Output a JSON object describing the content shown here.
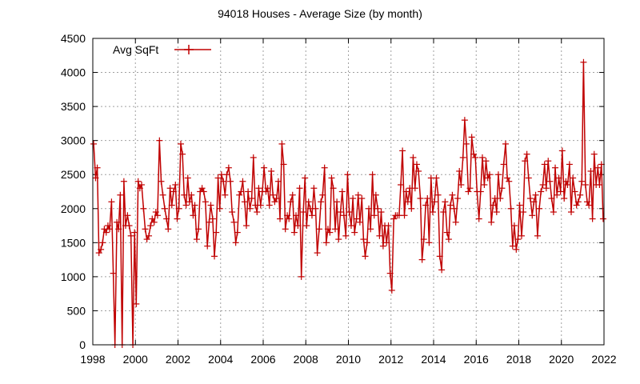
{
  "chart_data": {
    "type": "line",
    "title": "94018 Houses - Average Size (by month)",
    "xlabel": "",
    "ylabel": "",
    "xlim": [
      1998,
      2022
    ],
    "ylim": [
      0,
      4500
    ],
    "xticks": [
      "1998",
      "2000",
      "2002",
      "2004",
      "2006",
      "2008",
      "2010",
      "2012",
      "2014",
      "2016",
      "2018",
      "2020",
      "2022"
    ],
    "yticks": [
      "0",
      "500",
      "1000",
      "1500",
      "2000",
      "2500",
      "3000",
      "3500",
      "4000",
      "4500"
    ],
    "grid": true,
    "legend_position": "top-left",
    "colors": {
      "series": "#c00000",
      "axis": "#000000",
      "grid": "#a0a0a0"
    },
    "series": [
      {
        "name": "Avg SqFt",
        "marker": "plus",
        "x": [
          1998.04,
          1998.13,
          1998.21,
          1998.29,
          1998.38,
          1998.46,
          1998.54,
          1998.63,
          1998.71,
          1998.79,
          1998.88,
          1998.96,
          1999.04,
          1999.13,
          1999.21,
          1999.29,
          1999.38,
          1999.46,
          1999.54,
          1999.63,
          1999.71,
          1999.79,
          1999.88,
          1999.96,
          2000.04,
          2000.13,
          2000.21,
          2000.29,
          2000.38,
          2000.46,
          2000.54,
          2000.63,
          2000.71,
          2000.79,
          2000.88,
          2000.96,
          2001.04,
          2001.13,
          2001.21,
          2001.29,
          2001.38,
          2001.46,
          2001.54,
          2001.63,
          2001.71,
          2001.79,
          2001.88,
          2001.96,
          2002.04,
          2002.13,
          2002.21,
          2002.29,
          2002.38,
          2002.46,
          2002.54,
          2002.63,
          2002.71,
          2002.79,
          2002.88,
          2002.96,
          2003.04,
          2003.13,
          2003.21,
          2003.29,
          2003.38,
          2003.46,
          2003.54,
          2003.63,
          2003.71,
          2003.79,
          2003.88,
          2003.96,
          2004.04,
          2004.13,
          2004.21,
          2004.29,
          2004.38,
          2004.46,
          2004.54,
          2004.63,
          2004.71,
          2004.79,
          2004.88,
          2004.96,
          2005.04,
          2005.13,
          2005.21,
          2005.29,
          2005.38,
          2005.46,
          2005.54,
          2005.63,
          2005.71,
          2005.79,
          2005.88,
          2005.96,
          2006.04,
          2006.13,
          2006.21,
          2006.29,
          2006.38,
          2006.46,
          2006.54,
          2006.63,
          2006.71,
          2006.79,
          2006.88,
          2006.96,
          2007.04,
          2007.13,
          2007.21,
          2007.29,
          2007.38,
          2007.46,
          2007.54,
          2007.63,
          2007.71,
          2007.79,
          2007.88,
          2007.96,
          2008.04,
          2008.13,
          2008.21,
          2008.29,
          2008.38,
          2008.46,
          2008.54,
          2008.63,
          2008.71,
          2008.79,
          2008.88,
          2008.96,
          2009.04,
          2009.13,
          2009.21,
          2009.29,
          2009.38,
          2009.46,
          2009.54,
          2009.63,
          2009.71,
          2009.79,
          2009.88,
          2009.96,
          2010.04,
          2010.13,
          2010.21,
          2010.29,
          2010.38,
          2010.46,
          2010.54,
          2010.63,
          2010.71,
          2010.79,
          2010.88,
          2010.96,
          2011.04,
          2011.13,
          2011.21,
          2011.29,
          2011.38,
          2011.46,
          2011.54,
          2011.63,
          2011.71,
          2011.79,
          2011.88,
          2011.96,
          2012.04,
          2012.13,
          2012.21,
          2012.29,
          2012.38,
          2012.46,
          2012.54,
          2012.63,
          2012.71,
          2012.79,
          2012.88,
          2012.96,
          2013.04,
          2013.13,
          2013.21,
          2013.29,
          2013.38,
          2013.46,
          2013.54,
          2013.63,
          2013.71,
          2013.79,
          2013.88,
          2013.96,
          2014.04,
          2014.13,
          2014.21,
          2014.29,
          2014.38,
          2014.46,
          2014.54,
          2014.63,
          2014.71,
          2014.79,
          2014.88,
          2014.96,
          2015.04,
          2015.13,
          2015.21,
          2015.29,
          2015.38,
          2015.46,
          2015.54,
          2015.63,
          2015.71,
          2015.79,
          2015.88,
          2015.96,
          2016.04,
          2016.13,
          2016.21,
          2016.29,
          2016.38,
          2016.46,
          2016.54,
          2016.63,
          2016.71,
          2016.79,
          2016.88,
          2016.96,
          2017.04,
          2017.13,
          2017.21,
          2017.29,
          2017.38,
          2017.46,
          2017.54,
          2017.63,
          2017.71,
          2017.79,
          2017.88,
          2017.96,
          2018.04,
          2018.13,
          2018.21,
          2018.29,
          2018.38,
          2018.46,
          2018.54,
          2018.63,
          2018.71,
          2018.79,
          2018.88,
          2018.96,
          2019.04,
          2019.13,
          2019.21,
          2019.29,
          2019.38,
          2019.46,
          2019.54,
          2019.63,
          2019.71,
          2019.79,
          2019.88,
          2019.96,
          2020.04,
          2020.13,
          2020.21,
          2020.29,
          2020.38,
          2020.46,
          2020.54,
          2020.63,
          2020.71,
          2020.79,
          2020.88,
          2020.96,
          2021.04,
          2021.13,
          2021.21,
          2021.29,
          2021.38,
          2021.46,
          2021.54,
          2021.63,
          2021.71,
          2021.79,
          2021.88,
          2021.96
        ],
        "y": [
          2950,
          2450,
          2600,
          1350,
          1400,
          1500,
          1700,
          1650,
          1750,
          1700,
          2100,
          1050,
          0,
          1800,
          1700,
          2200,
          0,
          2400,
          1750,
          1900,
          1750,
          1600,
          0,
          1650,
          600,
          2400,
          2300,
          2350,
          2000,
          1700,
          1550,
          1600,
          1750,
          1850,
          1800,
          1950,
          1900,
          3000,
          2400,
          2200,
          2000,
          1850,
          1700,
          2300,
          2050,
          2250,
          2350,
          1850,
          2000,
          2950,
          2800,
          2200,
          2050,
          2450,
          2100,
          2200,
          1900,
          2050,
          1550,
          1700,
          2250,
          2300,
          2250,
          2100,
          1450,
          1800,
          2050,
          1850,
          1300,
          1650,
          2450,
          2000,
          2500,
          2400,
          2200,
          2500,
          2600,
          2400,
          1950,
          1800,
          1500,
          1650,
          2200,
          2250,
          2400,
          2100,
          1750,
          2250,
          2000,
          2150,
          2750,
          2050,
          1950,
          2300,
          2050,
          2250,
          2600,
          2250,
          2300,
          2050,
          2550,
          2200,
          2100,
          2150,
          2400,
          1850,
          2950,
          2650,
          1700,
          1900,
          1850,
          2100,
          2200,
          1650,
          1900,
          1750,
          2300,
          1000,
          1950,
          2450,
          1750,
          2100,
          2000,
          1900,
          2300,
          2000,
          1350,
          1700,
          2100,
          2200,
          2600,
          1500,
          1700,
          1650,
          2450,
          2300,
          1700,
          2100,
          1550,
          1950,
          2250,
          1900,
          1600,
          2500,
          1950,
          1750,
          2150,
          1650,
          1850,
          2200,
          1800,
          2150,
          1550,
          1300,
          1500,
          2000,
          1700,
          2500,
          1900,
          2200,
          2000,
          1600,
          1950,
          1450,
          1750,
          1500,
          1750,
          1050,
          800,
          1850,
          1900,
          1900,
          1900,
          2350,
          2850,
          1900,
          2250,
          2100,
          2300,
          2000,
          2750,
          2300,
          2650,
          2550,
          2150,
          1250,
          1550,
          2050,
          2150,
          1500,
          2450,
          1950,
          2100,
          2450,
          2200,
          1300,
          1100,
          1950,
          2100,
          1650,
          1550,
          2050,
          2200,
          2000,
          1800,
          2150,
          2550,
          2350,
          2750,
          3300,
          2950,
          2250,
          2300,
          3050,
          2800,
          2750,
          2250,
          1850,
          2250,
          2750,
          2350,
          2700,
          2450,
          2500,
          1800,
          2050,
          2150,
          1950,
          2500,
          2150,
          2300,
          2650,
          2950,
          2450,
          2400,
          2000,
          1450,
          1750,
          1400,
          1550,
          2050,
          1600,
          1950,
          2700,
          2800,
          2450,
          2150,
          1900,
          2100,
          2200,
          1600,
          2000,
          2250,
          2350,
          2650,
          2300,
          2700,
          2400,
          2150,
          1950,
          2600,
          2200,
          2450,
          2250,
          2850,
          2150,
          2400,
          2350,
          2650,
          1950,
          2450,
          2250,
          2050,
          2100,
          2200,
          2400,
          4150,
          2350,
          2100,
          2050,
          2550,
          1850,
          2800,
          2350,
          2600,
          2350,
          2650,
          1850
        ]
      }
    ]
  }
}
